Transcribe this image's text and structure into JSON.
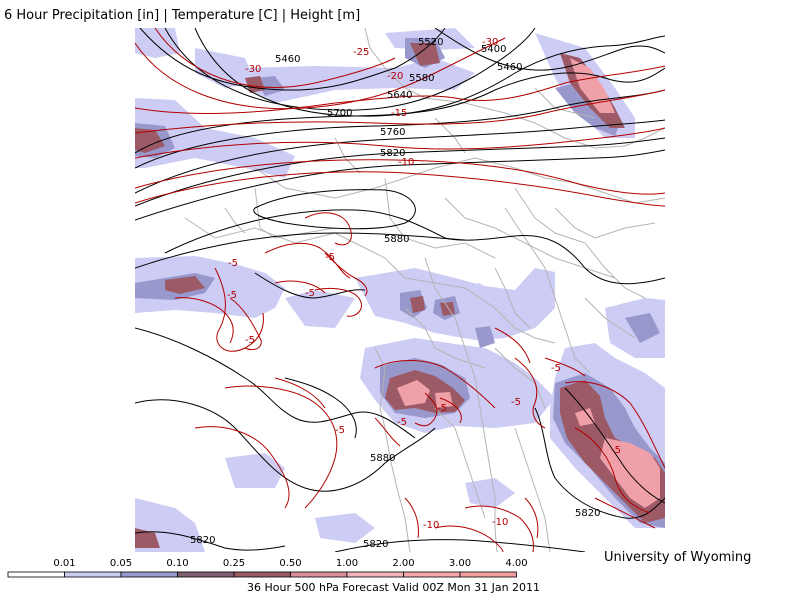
{
  "header": {
    "title": "6 Hour Precipitation [in] | Temperature [C] | Height [m]"
  },
  "footer": {
    "credit": "University of Wyoming",
    "valid": "36 Hour 500 hPa Forecast Valid 00Z Mon 31 Jan 2011"
  },
  "legend": {
    "ticks": [
      "0.01",
      "0.05",
      "0.10",
      "0.25",
      "0.50",
      "1.00",
      "2.00",
      "3.00",
      "4.00"
    ],
    "colors": [
      "#ffffff",
      "#ccccf0",
      "#9a9ad0",
      "#806070",
      "#9c5a63",
      "#d89098",
      "#f2b4b8",
      "#f5a8a8",
      "#f5a0a0"
    ]
  },
  "map": {
    "colors": {
      "height": "#000000",
      "temperature": "#b20000",
      "borders": "#b4b4b4",
      "precip_light": "#ccccf4",
      "precip_mid": "#9898cc",
      "precip_heavy": "#9c5a66",
      "precip_max": "#f0a0a8"
    },
    "height_labels": [
      "5460",
      "5520",
      "5400",
      "5460",
      "5580",
      "5640",
      "5700",
      "5760",
      "5820",
      "5880",
      "5880",
      "5820",
      "5820",
      "5820"
    ],
    "temperature_labels": [
      "-30",
      "-25",
      "-20",
      "-30",
      "-15",
      "-10",
      "-5",
      "-5",
      "-5",
      "-5",
      "-5",
      "-5",
      "-5",
      "-5",
      "-5",
      "-5",
      "-5",
      "-10",
      "-10"
    ]
  }
}
